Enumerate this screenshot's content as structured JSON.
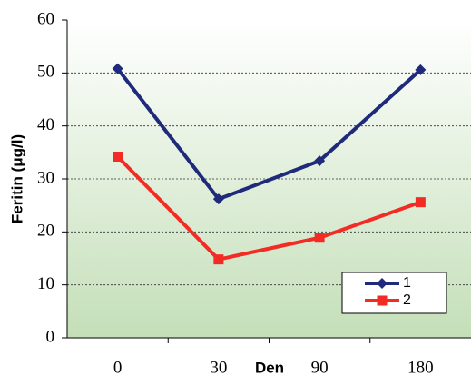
{
  "chart_data": {
    "type": "line",
    "y_label": "Feritin (μg/l)",
    "x_label": "Den",
    "categories": [
      "0",
      "30",
      "90",
      "180"
    ],
    "series": [
      {
        "name": "1",
        "color": "#1f2a7a",
        "marker": "diamond",
        "values": [
          50.8,
          26.2,
          33.4,
          50.6
        ]
      },
      {
        "name": "2",
        "color": "#f22b25",
        "marker": "square",
        "values": [
          34.2,
          14.8,
          18.9,
          25.6
        ]
      }
    ],
    "ylim": [
      0,
      60
    ],
    "yticks": [
      0,
      10,
      20,
      30,
      40,
      50,
      60
    ],
    "grid": true,
    "legend": "lower right"
  }
}
